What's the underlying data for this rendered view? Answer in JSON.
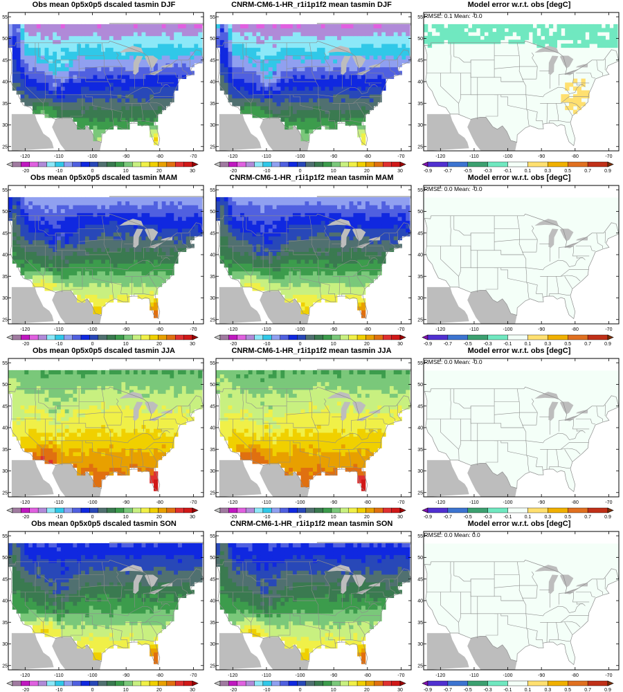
{
  "figure": {
    "rows": [
      {
        "season": "DJF",
        "titles": [
          "Obs mean 0p5x0p5 dscaled tasmin DJF",
          "CNRM-CM6-1-HR_r1i1p1f2 mean tasmin DJF",
          "Model error w.r.t. obs [degC]"
        ],
        "stats": "RMSE: 0.1   Mean: -0.0"
      },
      {
        "season": "MAM",
        "titles": [
          "Obs mean 0p5x0p5 dscaled tasmin MAM",
          "CNRM-CM6-1-HR_r1i1p1f2 mean tasmin MAM",
          "Model error w.r.t. obs [degC]"
        ],
        "stats": "RMSE: 0.0   Mean: -0.0"
      },
      {
        "season": "JJA",
        "titles": [
          "Obs mean 0p5x0p5 dscaled tasmin JJA",
          "CNRM-CM6-1-HR_r1i1p1f2 mean tasmin JJA",
          "Model error w.r.t. obs [degC]"
        ],
        "stats": "RMSE: 0.0   Mean: -0.0"
      },
      {
        "season": "SON",
        "titles": [
          "Obs mean 0p5x0p5 dscaled tasmin SON",
          "CNRM-CM6-1-HR_r1i1p1f2 mean tasmin SON",
          "Model error w.r.t. obs [degC]"
        ],
        "stats": "RMSE: 0.0   Mean: 0.0"
      }
    ]
  },
  "chart_data": {
    "type": "heatmap",
    "x_ticks": [
      "-120",
      "-110",
      "-100",
      "-90",
      "-80",
      "-70"
    ],
    "y_ticks": [
      "25",
      "30",
      "35",
      "40",
      "45",
      "50",
      "55"
    ],
    "xlim": [
      -125,
      -67
    ],
    "ylim": [
      24,
      56
    ],
    "temp_colorbar": {
      "tick_labels": [
        "-20",
        "-10",
        "0",
        "10",
        "20",
        "30"
      ],
      "tick_values": [
        -20,
        -10,
        0,
        10,
        20,
        30
      ],
      "range": [
        -26,
        30
      ],
      "colors": [
        "#c8c8c8",
        "#a07aa0",
        "#c018c0",
        "#e060e0",
        "#b08ad8",
        "#8ce8f8",
        "#30c8e8",
        "#90a0f0",
        "#5060e0",
        "#1028e0",
        "#2848b8",
        "#507070",
        "#3a7a50",
        "#3c9c4c",
        "#7ac87a",
        "#c8f080",
        "#f0f048",
        "#f0d000",
        "#e8a000",
        "#e07010",
        "#e03030",
        "#d01818",
        "#a00000"
      ]
    },
    "error_colorbar": {
      "tick_labels": [
        "-0.9",
        "-0.7",
        "-0.5",
        "-0.3",
        "-0.1",
        "0.1",
        "0.3",
        "0.5",
        "0.7",
        "0.9"
      ],
      "range": [
        -0.9,
        0.9
      ],
      "colors": [
        "#8010b0",
        "#5030d0",
        "#3c74d0",
        "#3ca070",
        "#70e8c0",
        "#f4fff8",
        "#ffe070",
        "#f0b000",
        "#e07020",
        "#c03018",
        "#803008"
      ]
    },
    "mean_fields": {
      "DJF": {
        "tmin_north": -16,
        "tmin_south": 12,
        "upper_midwest": -18,
        "rockies": -14,
        "west_coast": 4
      },
      "MAM": {
        "tmin_north": -8,
        "tmin_south": 18,
        "upper_midwest": -6,
        "rockies": -8,
        "west_coast": 6
      },
      "JJA": {
        "tmin_north": 8,
        "tmin_south": 23,
        "upper_midwest": 9,
        "rockies": 3,
        "west_coast": 12
      },
      "SON": {
        "tmin_north": -4,
        "tmin_south": 18,
        "upper_midwest": -4,
        "rockies": -6,
        "west_coast": 7
      }
    },
    "error_fields": {
      "DJF": {
        "canada_band": -0.2,
        "southeast": 0.2,
        "elsewhere": 0.0
      },
      "MAM": {
        "canada_band": 0.0,
        "southeast": 0.0,
        "elsewhere": 0.0
      },
      "JJA": {
        "canada_band": 0.0,
        "southeast": 0.0,
        "elsewhere": 0.0
      },
      "SON": {
        "canada_band": 0.0,
        "southeast": 0.0,
        "elsewhere": 0.0
      }
    },
    "colors": {
      "land_mask": "#bdbdbd",
      "border": "#8c8c8c"
    }
  }
}
